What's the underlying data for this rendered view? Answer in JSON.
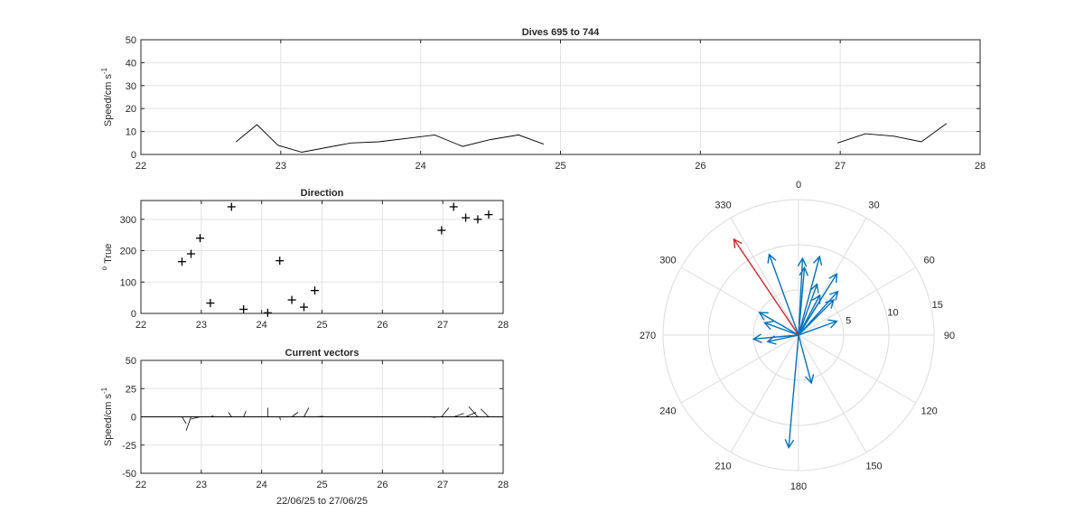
{
  "chart_data": [
    {
      "id": "speed",
      "type": "line",
      "title": "Dives 695 to 744",
      "xlabel": "",
      "ylabel": "Speed/cm s",
      "ylabel_sup": "-1",
      "xlim": [
        22,
        28
      ],
      "ylim": [
        0,
        50
      ],
      "xticks": [
        "22",
        "23",
        "24",
        "25",
        "26",
        "27",
        "28"
      ],
      "yticks": [
        "0",
        "10",
        "20",
        "30",
        "40",
        "50"
      ],
      "grid": true,
      "series": [
        {
          "color": "#000000",
          "segments": [
            [
              [
                22.68,
                5.5
              ],
              [
                22.83,
                13
              ],
              [
                22.98,
                4
              ],
              [
                23.15,
                1
              ],
              [
                23.5,
                5
              ],
              [
                23.7,
                5.5
              ],
              [
                24.1,
                8.5
              ],
              [
                24.3,
                3.5
              ],
              [
                24.5,
                6.5
              ],
              [
                24.7,
                8.5
              ],
              [
                24.88,
                4.5
              ]
            ],
            [
              [
                26.98,
                5
              ],
              [
                27.18,
                9
              ],
              [
                27.38,
                8
              ],
              [
                27.58,
                5.5
              ],
              [
                27.76,
                13.5
              ]
            ]
          ]
        }
      ]
    },
    {
      "id": "direction",
      "type": "scatter",
      "title": "Direction",
      "ylabel": "True",
      "ylabel_sup": "o",
      "xlim": [
        22,
        28
      ],
      "ylim": [
        0,
        360
      ],
      "xticks": [
        "22",
        "23",
        "24",
        "25",
        "26",
        "27",
        "28"
      ],
      "yticks": [
        "0",
        "100",
        "200",
        "300"
      ],
      "grid": true,
      "marker": "+",
      "points": [
        [
          22.68,
          165
        ],
        [
          22.83,
          190
        ],
        [
          22.98,
          240
        ],
        [
          23.15,
          33
        ],
        [
          23.5,
          340
        ],
        [
          23.7,
          13
        ],
        [
          24.1,
          2
        ],
        [
          24.3,
          168
        ],
        [
          24.5,
          43
        ],
        [
          24.7,
          20
        ],
        [
          24.88,
          73
        ],
        [
          26.98,
          265
        ],
        [
          27.18,
          340
        ],
        [
          27.38,
          305
        ],
        [
          27.58,
          300
        ],
        [
          27.76,
          315
        ]
      ]
    },
    {
      "id": "vectors",
      "type": "line",
      "title": "Current vectors",
      "xlabel": "22/06/25 to 27/06/25",
      "ylabel": "Speed/cm s",
      "ylabel_sup": "-1",
      "xlim": [
        22,
        28
      ],
      "ylim": [
        -50,
        50
      ],
      "xticks": [
        "22",
        "23",
        "24",
        "25",
        "26",
        "27",
        "28"
      ],
      "yticks": [
        "-50",
        "-25",
        "0",
        "25",
        "50"
      ],
      "grid": true,
      "zero_line": true,
      "vectors": [
        [
          [
            22.68,
            0
          ],
          [
            22.75,
            -6
          ]
        ],
        [
          [
            22.83,
            0
          ],
          [
            22.75,
            -12
          ]
        ],
        [
          [
            22.98,
            0
          ],
          [
            22.83,
            -2
          ]
        ],
        [
          [
            23.15,
            0
          ],
          [
            23.2,
            1
          ]
        ],
        [
          [
            23.5,
            0
          ],
          [
            23.45,
            4
          ]
        ],
        [
          [
            23.7,
            0
          ],
          [
            23.74,
            5
          ]
        ],
        [
          [
            24.1,
            0
          ],
          [
            24.1,
            8
          ]
        ],
        [
          [
            24.3,
            0
          ],
          [
            24.31,
            -3
          ]
        ],
        [
          [
            24.5,
            0
          ],
          [
            24.6,
            4
          ]
        ],
        [
          [
            24.7,
            0
          ],
          [
            24.78,
            8
          ]
        ],
        [
          [
            24.88,
            0
          ],
          [
            25.02,
            0.5
          ]
        ],
        [
          [
            26.78,
            0
          ],
          [
            26.88,
            -0.5
          ]
        ],
        [
          [
            26.98,
            0
          ],
          [
            27.1,
            8
          ]
        ],
        [
          [
            27.18,
            0
          ],
          [
            27.35,
            3
          ]
        ],
        [
          [
            27.38,
            0
          ],
          [
            27.55,
            4
          ]
        ],
        [
          [
            27.58,
            0
          ],
          [
            27.43,
            9
          ]
        ],
        [
          [
            27.76,
            0
          ],
          [
            27.63,
            7
          ]
        ]
      ]
    },
    {
      "id": "polar",
      "type": "polar",
      "rlim": [
        0,
        15
      ],
      "rticks": [
        "5",
        "10",
        "15"
      ],
      "theta_labels": [
        "0",
        "30",
        "60",
        "90",
        "120",
        "150",
        "180",
        "210",
        "240",
        "270",
        "300",
        "330"
      ],
      "theta_zero": "top",
      "theta_direction": "clockwise",
      "series": [
        {
          "color": "#0072BD",
          "vectors": [
            [
              340,
              9.5
            ],
            [
              15,
              9
            ],
            [
              20,
              6
            ],
            [
              28,
              5
            ],
            [
              5,
              7.5
            ],
            [
              3,
              8.5
            ],
            [
              32,
              8
            ],
            [
              42,
              6.5
            ],
            [
              45,
              5.5
            ],
            [
              70,
              4.5
            ],
            [
              300,
              5
            ],
            [
              290,
              4
            ],
            [
              265,
              5
            ],
            [
              258,
              3.5
            ],
            [
              185,
              12.5
            ],
            [
              165,
              5.5
            ]
          ]
        },
        {
          "color": "#D62728",
          "vectors": [
            [
              326,
              12.8
            ]
          ]
        }
      ]
    }
  ]
}
